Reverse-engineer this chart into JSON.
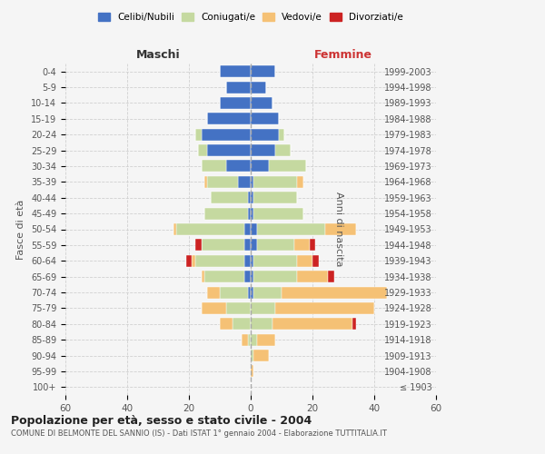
{
  "age_groups": [
    "100+",
    "95-99",
    "90-94",
    "85-89",
    "80-84",
    "75-79",
    "70-74",
    "65-69",
    "60-64",
    "55-59",
    "50-54",
    "45-49",
    "40-44",
    "35-39",
    "30-34",
    "25-29",
    "20-24",
    "15-19",
    "10-14",
    "5-9",
    "0-4"
  ],
  "birth_years": [
    "≤ 1903",
    "1904-1908",
    "1909-1913",
    "1914-1918",
    "1919-1923",
    "1924-1928",
    "1929-1933",
    "1934-1938",
    "1939-1943",
    "1944-1948",
    "1949-1953",
    "1954-1958",
    "1959-1963",
    "1964-1968",
    "1969-1973",
    "1974-1978",
    "1979-1983",
    "1984-1988",
    "1989-1993",
    "1994-1998",
    "1999-2003"
  ],
  "maschi": {
    "celibi": [
      0,
      0,
      0,
      0,
      0,
      0,
      1,
      2,
      2,
      2,
      2,
      1,
      1,
      4,
      8,
      14,
      16,
      14,
      10,
      8,
      10
    ],
    "coniugati": [
      0,
      0,
      0,
      1,
      6,
      8,
      9,
      13,
      16,
      14,
      22,
      14,
      12,
      10,
      8,
      3,
      2,
      0,
      0,
      0,
      0
    ],
    "vedovi": [
      0,
      0,
      0,
      2,
      4,
      8,
      4,
      1,
      1,
      0,
      1,
      0,
      0,
      1,
      0,
      0,
      0,
      0,
      0,
      0,
      0
    ],
    "divorziati": [
      0,
      0,
      0,
      0,
      0,
      0,
      0,
      0,
      2,
      2,
      0,
      0,
      0,
      0,
      0,
      0,
      0,
      0,
      0,
      0,
      0
    ]
  },
  "femmine": {
    "nubili": [
      0,
      0,
      0,
      0,
      0,
      0,
      1,
      1,
      1,
      2,
      2,
      1,
      1,
      1,
      6,
      8,
      9,
      9,
      7,
      5,
      8
    ],
    "coniugate": [
      0,
      0,
      1,
      2,
      7,
      8,
      9,
      14,
      14,
      12,
      22,
      16,
      14,
      14,
      12,
      5,
      2,
      0,
      0,
      0,
      0
    ],
    "vedove": [
      0,
      1,
      5,
      6,
      26,
      32,
      34,
      10,
      5,
      5,
      10,
      0,
      0,
      2,
      0,
      0,
      0,
      0,
      0,
      0,
      0
    ],
    "divorziate": [
      0,
      0,
      0,
      0,
      1,
      0,
      0,
      2,
      2,
      2,
      0,
      0,
      0,
      0,
      0,
      0,
      0,
      0,
      0,
      0,
      0
    ]
  },
  "color_celibi": "#4472c4",
  "color_coniugati": "#c5d9a0",
  "color_vedovi": "#f5c175",
  "color_divorziati": "#cc2222",
  "title": "Popolazione per età, sesso e stato civile - 2004",
  "subtitle": "COMUNE DI BELMONTE DEL SANNIO (IS) - Dati ISTAT 1° gennaio 2004 - Elaborazione TUTTITALIA.IT",
  "xlabel_left": "Maschi",
  "xlabel_right": "Femmine",
  "ylabel_left": "Fasce di età",
  "ylabel_right": "Anni di nascita",
  "xlim": 60,
  "bg_color": "#f5f5f5",
  "grid_color": "#cccccc"
}
